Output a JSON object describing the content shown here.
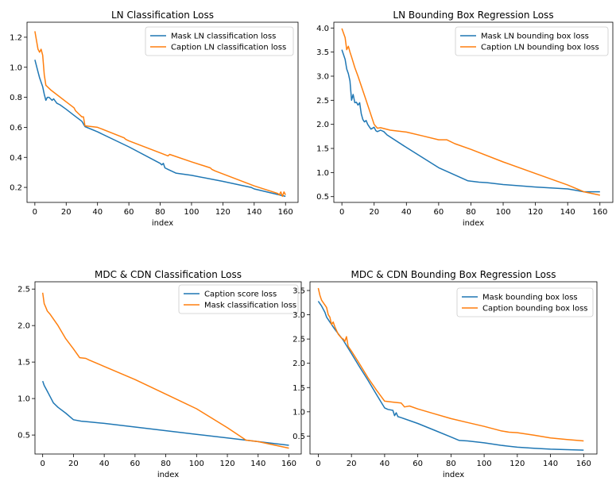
{
  "colors": {
    "series_1": "#1f77b4",
    "series_2": "#ff7f0e"
  },
  "chart_data": [
    {
      "type": "line",
      "title": "LN Classification Loss",
      "xlabel": "index",
      "ylabel": "",
      "xlim": [
        -5,
        168
      ],
      "ylim": [
        0.1,
        1.3
      ],
      "xticks": [
        0,
        20,
        40,
        60,
        80,
        100,
        120,
        140,
        160
      ],
      "yticks": [
        0.2,
        0.4,
        0.6,
        0.8,
        1.0,
        1.2
      ],
      "ytick_labels": [
        "0.2",
        "0.4",
        "0.6",
        "0.8",
        "1.0",
        "1.2"
      ],
      "legend_position": "top-right",
      "series": [
        {
          "name": "Mask LN classification loss",
          "x": [
            0,
            2,
            3,
            5,
            6,
            7,
            8,
            9,
            10,
            11,
            12,
            14,
            16,
            20,
            25,
            30,
            32,
            40,
            60,
            80,
            81,
            82,
            83,
            85,
            90,
            100,
            120,
            138,
            140,
            160
          ],
          "y": [
            1.05,
            0.97,
            0.93,
            0.87,
            0.82,
            0.78,
            0.8,
            0.8,
            0.79,
            0.78,
            0.79,
            0.76,
            0.75,
            0.72,
            0.68,
            0.64,
            0.605,
            0.57,
            0.47,
            0.36,
            0.35,
            0.36,
            0.33,
            0.32,
            0.295,
            0.28,
            0.24,
            0.2,
            0.19,
            0.14
          ]
        },
        {
          "name": "Caption LN classification loss",
          "x": [
            0,
            2,
            3,
            4,
            5,
            6,
            7,
            10,
            20,
            25,
            26,
            28,
            30,
            31,
            32,
            40,
            57,
            58,
            60,
            80,
            85,
            86,
            100,
            112,
            113,
            115,
            140,
            155,
            156,
            157,
            158,
            159,
            160
          ],
          "y": [
            1.24,
            1.12,
            1.1,
            1.12,
            1.08,
            0.95,
            0.88,
            0.85,
            0.77,
            0.73,
            0.71,
            0.69,
            0.67,
            0.67,
            0.61,
            0.6,
            0.53,
            0.52,
            0.51,
            0.43,
            0.41,
            0.42,
            0.37,
            0.33,
            0.32,
            0.31,
            0.21,
            0.16,
            0.15,
            0.17,
            0.14,
            0.17,
            0.15
          ]
        }
      ]
    },
    {
      "type": "line",
      "title": "LN Bounding Box Regression Loss",
      "xlabel": "index",
      "ylabel": "",
      "xlim": [
        -5,
        168
      ],
      "ylim": [
        0.38,
        4.12
      ],
      "xticks": [
        0,
        20,
        40,
        60,
        80,
        100,
        120,
        140,
        160
      ],
      "yticks": [
        0.5,
        1.0,
        1.5,
        2.0,
        2.5,
        3.0,
        3.5,
        4.0
      ],
      "ytick_labels": [
        "0.5",
        "1.0",
        "1.5",
        "2.0",
        "2.5",
        "3.0",
        "3.5",
        "4.0"
      ],
      "legend_position": "top-right",
      "series": [
        {
          "name": "Mask LN bounding box loss",
          "x": [
            0,
            2,
            3,
            4,
            5,
            6,
            7,
            8,
            9,
            10,
            11,
            12,
            13,
            14,
            15,
            16,
            17,
            18,
            20,
            21,
            22,
            24,
            26,
            28,
            40,
            60,
            78,
            80,
            85,
            90,
            100,
            120,
            140,
            145,
            150,
            160
          ],
          "y": [
            3.55,
            3.35,
            3.15,
            3.05,
            2.9,
            2.5,
            2.62,
            2.45,
            2.46,
            2.4,
            2.45,
            2.22,
            2.1,
            2.05,
            2.08,
            2.0,
            1.95,
            1.9,
            1.94,
            1.87,
            1.85,
            1.88,
            1.85,
            1.78,
            1.52,
            1.1,
            0.83,
            0.82,
            0.8,
            0.79,
            0.75,
            0.7,
            0.66,
            0.63,
            0.6,
            0.6
          ]
        },
        {
          "name": "Caption LN bounding box loss",
          "x": [
            0,
            2,
            3,
            4,
            5,
            6,
            8,
            10,
            15,
            20,
            22,
            24,
            30,
            40,
            50,
            60,
            65,
            70,
            80,
            100,
            120,
            140,
            150,
            160
          ],
          "y": [
            3.99,
            3.8,
            3.55,
            3.62,
            3.5,
            3.4,
            3.18,
            3.0,
            2.5,
            2.0,
            1.92,
            1.93,
            1.88,
            1.84,
            1.76,
            1.68,
            1.68,
            1.6,
            1.48,
            1.22,
            0.98,
            0.74,
            0.6,
            0.53
          ]
        }
      ]
    },
    {
      "type": "line",
      "title": "MDC & CDN Classification Loss",
      "xlabel": "index",
      "ylabel": "",
      "xlim": [
        -5,
        168
      ],
      "ylim": [
        0.24,
        2.6
      ],
      "xticks": [
        0,
        20,
        40,
        60,
        80,
        100,
        120,
        140,
        160
      ],
      "yticks": [
        0.5,
        1.0,
        1.5,
        2.0,
        2.5
      ],
      "ytick_labels": [
        "0.5",
        "1.0",
        "1.5",
        "2.0",
        "2.5"
      ],
      "legend_position": "top-right",
      "series": [
        {
          "name": "Caption score loss",
          "x": [
            0,
            1,
            3,
            5,
            7,
            10,
            15,
            20,
            25,
            30,
            40,
            60,
            80,
            100,
            120,
            140,
            160
          ],
          "y": [
            1.24,
            1.18,
            1.1,
            1.02,
            0.94,
            0.88,
            0.8,
            0.71,
            0.69,
            0.68,
            0.66,
            0.61,
            0.56,
            0.51,
            0.46,
            0.41,
            0.36
          ]
        },
        {
          "name": "Mask classification loss",
          "x": [
            0,
            1,
            2,
            3,
            5,
            10,
            15,
            20,
            24,
            28,
            30,
            40,
            60,
            80,
            100,
            120,
            130,
            132,
            140,
            160
          ],
          "y": [
            2.45,
            2.3,
            2.25,
            2.2,
            2.15,
            2.0,
            1.82,
            1.68,
            1.56,
            1.55,
            1.53,
            1.44,
            1.26,
            1.06,
            0.86,
            0.6,
            0.46,
            0.43,
            0.41,
            0.32
          ]
        }
      ]
    },
    {
      "type": "line",
      "title": "MDC & CDN Bounding Box Regression Loss",
      "xlabel": "index",
      "ylabel": "",
      "xlim": [
        -5,
        168
      ],
      "ylim": [
        0.13,
        3.68
      ],
      "xticks": [
        0,
        20,
        40,
        60,
        80,
        100,
        120,
        140,
        160
      ],
      "yticks": [
        0.5,
        1.0,
        1.5,
        2.0,
        2.5,
        3.0,
        3.5
      ],
      "ytick_labels": [
        "0.5",
        "1.0",
        "1.5",
        "2.0",
        "2.5",
        "3.0",
        "3.5"
      ],
      "legend_position": "top-right",
      "series": [
        {
          "name": "Mask bounding box loss",
          "x": [
            0,
            2,
            4,
            5,
            7,
            10,
            15,
            20,
            25,
            30,
            35,
            40,
            42,
            45,
            46,
            47,
            48,
            50,
            60,
            70,
            80,
            85,
            90,
            100,
            110,
            120,
            130,
            140,
            150,
            160
          ],
          "y": [
            3.28,
            3.18,
            3.05,
            2.95,
            2.85,
            2.7,
            2.48,
            2.2,
            1.92,
            1.65,
            1.36,
            1.08,
            1.05,
            1.03,
            0.92,
            0.98,
            0.9,
            0.88,
            0.76,
            0.62,
            0.48,
            0.41,
            0.4,
            0.36,
            0.31,
            0.27,
            0.25,
            0.23,
            0.22,
            0.21
          ]
        },
        {
          "name": "Caption bounding box loss",
          "x": [
            0,
            1,
            2,
            3,
            4,
            5,
            6,
            7,
            8,
            9,
            10,
            12,
            14,
            15,
            16,
            17,
            18,
            20,
            25,
            30,
            35,
            40,
            45,
            50,
            52,
            55,
            60,
            70,
            80,
            90,
            100,
            110,
            115,
            120,
            130,
            140,
            150,
            160
          ],
          "y": [
            3.55,
            3.4,
            3.3,
            3.25,
            3.2,
            3.15,
            3.0,
            2.95,
            2.8,
            2.85,
            2.75,
            2.6,
            2.52,
            2.5,
            2.45,
            2.55,
            2.35,
            2.25,
            1.98,
            1.7,
            1.45,
            1.22,
            1.2,
            1.18,
            1.1,
            1.12,
            1.06,
            0.96,
            0.86,
            0.78,
            0.7,
            0.61,
            0.58,
            0.57,
            0.52,
            0.46,
            0.43,
            0.4
          ]
        }
      ]
    }
  ]
}
